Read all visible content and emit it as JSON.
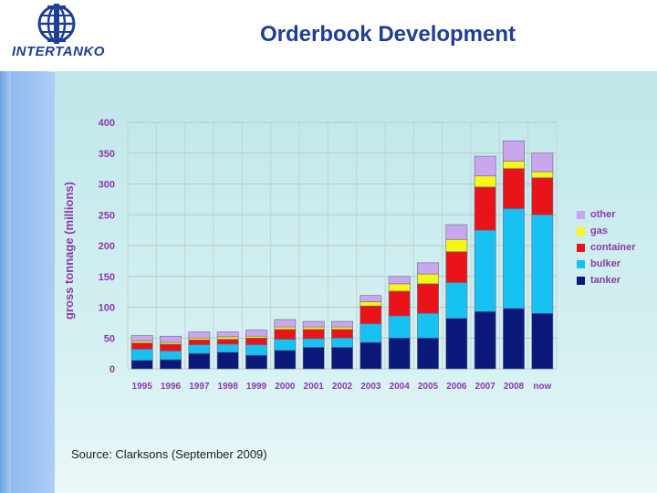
{
  "header": {
    "title": "Orderbook Development",
    "logo_text": "INTERTANKO"
  },
  "footer": {
    "source": "Source: Clarksons (September 2009)"
  },
  "colors": {
    "tanker": "#0b1a7a",
    "bulker": "#17c1f2",
    "container": "#e8141a",
    "gas": "#f7f716",
    "other": "#c9a6ee",
    "axis_text": "#8b3aa8"
  },
  "chart_data": {
    "type": "bar",
    "stacked": true,
    "title": "",
    "xlabel": "",
    "ylabel": "gross tonnage (millions)",
    "ylim": [
      0,
      400
    ],
    "yticks": [
      0,
      50,
      100,
      150,
      200,
      250,
      300,
      350,
      400
    ],
    "grid": true,
    "legend_position": "right",
    "categories": [
      "1995",
      "1996",
      "1997",
      "1998",
      "1999",
      "2000",
      "2001",
      "2002",
      "2003",
      "2004",
      "2005",
      "2006",
      "2007",
      "2008",
      "now"
    ],
    "series": [
      {
        "name": "tanker",
        "values": [
          14,
          15,
          25,
          27,
          22,
          30,
          35,
          35,
          43,
          50,
          50,
          82,
          93,
          98,
          90
        ]
      },
      {
        "name": "bulker",
        "values": [
          18,
          14,
          14,
          13,
          17,
          18,
          14,
          15,
          30,
          36,
          40,
          58,
          132,
          162,
          160
        ]
      },
      {
        "name": "container",
        "values": [
          10,
          11,
          8,
          8,
          11,
          16,
          15,
          14,
          29,
          40,
          48,
          50,
          70,
          65,
          60
        ]
      },
      {
        "name": "gas",
        "values": [
          3,
          3,
          3,
          4,
          3,
          4,
          4,
          4,
          7,
          12,
          16,
          20,
          18,
          12,
          10
        ]
      },
      {
        "name": "other",
        "values": [
          9,
          10,
          10,
          8,
          10,
          12,
          9,
          9,
          10,
          12,
          18,
          24,
          32,
          33,
          30
        ]
      }
    ]
  }
}
